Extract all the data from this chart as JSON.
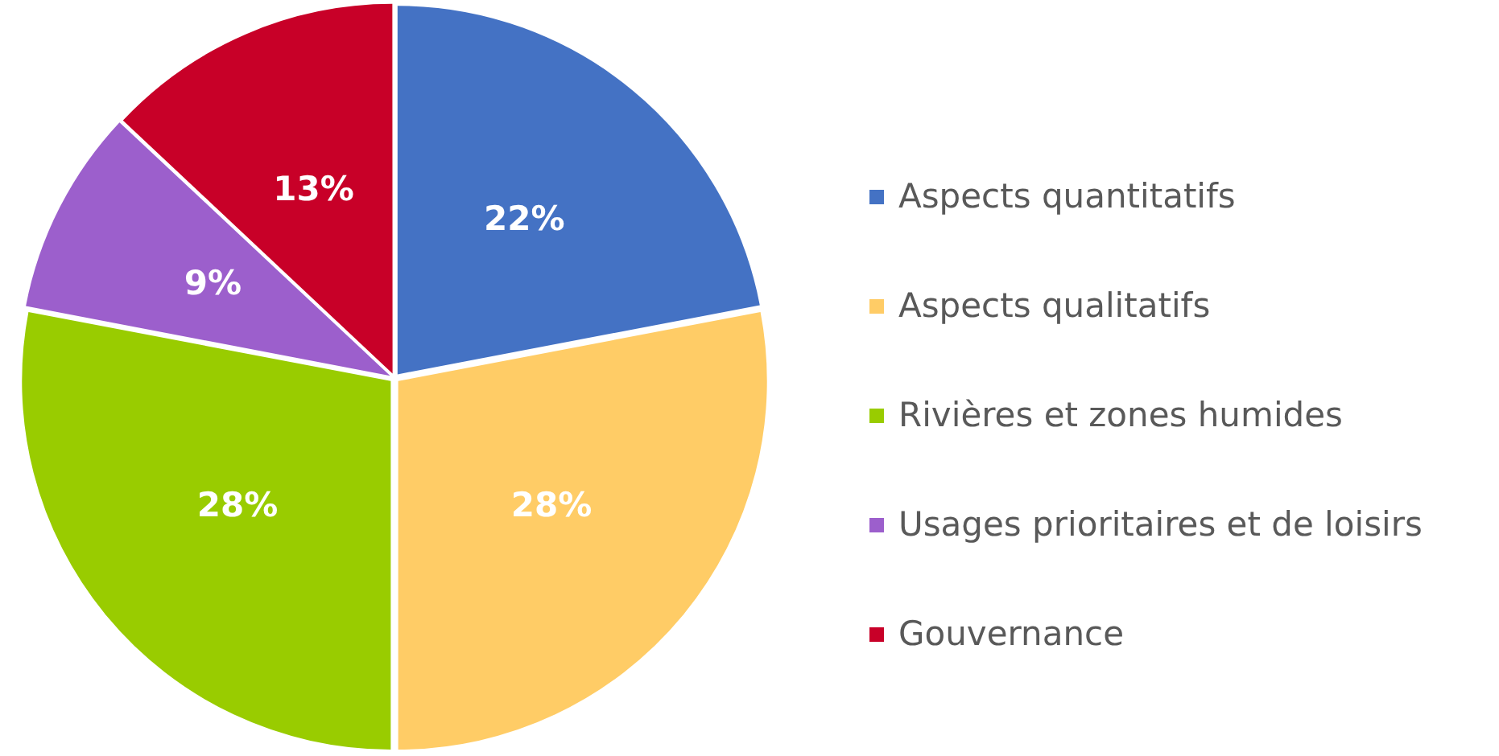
{
  "chart_data": {
    "type": "pie",
    "categories": [
      "Aspects quantitatifs",
      "Aspects qualitatifs",
      "Rivières et zones humides",
      "Usages prioritaires et de loisirs",
      "Gouvernance"
    ],
    "values": [
      22,
      28,
      28,
      9,
      13
    ],
    "colors": [
      "#4472c4",
      "#ffcc66",
      "#99cc00",
      "#9c5fcc",
      "#c80028"
    ],
    "value_labels": [
      "22%",
      "28%",
      "28%",
      "9%",
      "13%"
    ],
    "legend": "right"
  }
}
